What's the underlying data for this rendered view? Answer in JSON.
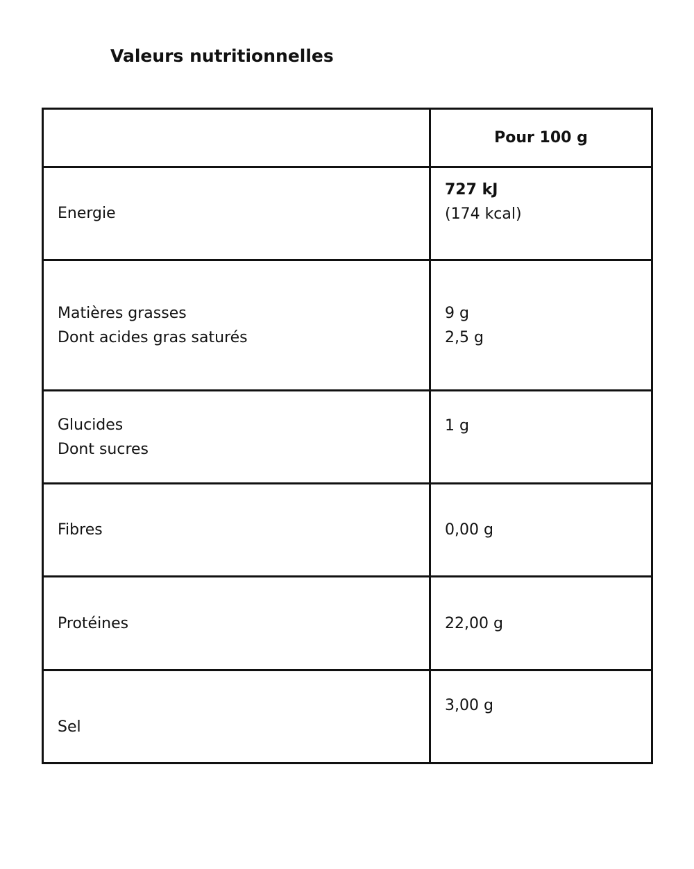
{
  "title": "Valeurs nutritionnelles",
  "header": "Pour 100 g",
  "rows": [
    {
      "label": [
        "Energie"
      ],
      "value": [
        "727 kJ",
        "(174 kcal)"
      ]
    },
    {
      "label": [
        "Matières grasses",
        "Dont acides gras saturés"
      ],
      "value": [
        "9 g",
        "2,5 g"
      ]
    },
    {
      "label": [
        "Glucides",
        "Dont sucres"
      ],
      "value": [
        "1 g"
      ]
    },
    {
      "label": [
        "Fibres"
      ],
      "value": [
        "0,00 g"
      ]
    },
    {
      "label": [
        "Protéines"
      ],
      "value": [
        "22,00 g"
      ]
    },
    {
      "label": [
        "Sel"
      ],
      "value": [
        "3,00 g"
      ]
    }
  ]
}
